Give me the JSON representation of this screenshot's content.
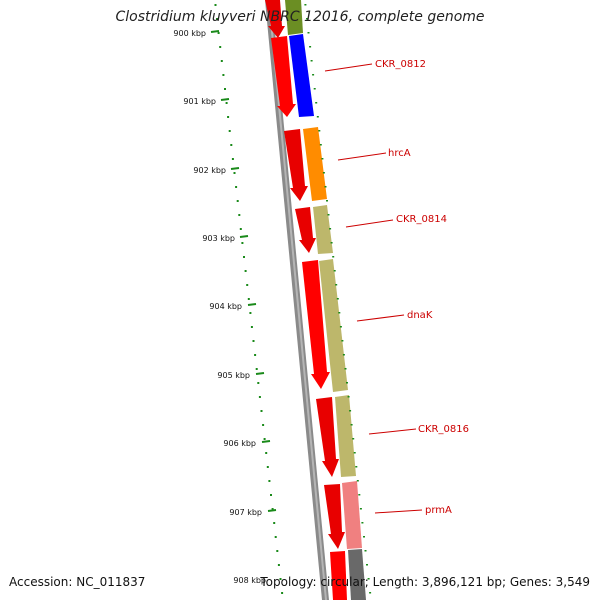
{
  "title": "Clostridium kluyveri NBRC 12016, complete genome",
  "footer": {
    "accession": "Accession: NC_011837",
    "summary": "Topology: circular; Length: 3,896,121 bp; Genes: 3,549"
  },
  "colors": {
    "background": "#ffffff",
    "backbone": "#808080",
    "tick": "#1a8a1a",
    "gene_red": "#ff0000",
    "label_red": "#cc0000",
    "blue": "#0000ff",
    "orange": "#ff8c00",
    "khaki": "#bdb76b",
    "pink": "#f08080",
    "olive": "#6b8e23",
    "gray": "#696969"
  },
  "scale_labels": [
    "900 kbp",
    "901 kbp",
    "902 kbp",
    "903 kbp",
    "904 kbp",
    "905 kbp",
    "906 kbp",
    "907 kbp",
    "908 kbp"
  ],
  "gene_labels": [
    "CKR_0812",
    "hrcA",
    "CKR_0814",
    "dnaK",
    "CKR_0816",
    "prmA"
  ]
}
